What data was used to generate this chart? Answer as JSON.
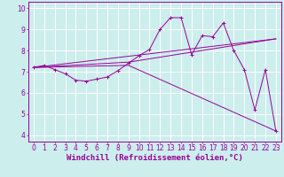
{
  "title": "",
  "xlabel": "Windchill (Refroidissement éolien,°C)",
  "background_color": "#cceeed",
  "line_color": "#990099",
  "grid_color": "#ffffff",
  "xlim": [
    -0.5,
    23.5
  ],
  "ylim": [
    3.7,
    10.3
  ],
  "xticks": [
    0,
    1,
    2,
    3,
    4,
    5,
    6,
    7,
    8,
    9,
    10,
    11,
    12,
    13,
    14,
    15,
    16,
    17,
    18,
    19,
    20,
    21,
    22,
    23
  ],
  "yticks": [
    4,
    5,
    6,
    7,
    8,
    9,
    10
  ],
  "series1_x": [
    0,
    1,
    2,
    3,
    4,
    5,
    6,
    7,
    8,
    9,
    10,
    11,
    12,
    13,
    14,
    15,
    16,
    17,
    18,
    19,
    20,
    21,
    22,
    23
  ],
  "series1_y": [
    7.2,
    7.3,
    7.1,
    6.9,
    6.6,
    6.55,
    6.65,
    6.75,
    7.05,
    7.4,
    7.75,
    8.05,
    9.0,
    9.55,
    9.55,
    7.8,
    8.7,
    8.65,
    9.3,
    8.0,
    7.1,
    5.2,
    7.1,
    4.2
  ],
  "series2_x": [
    0,
    23
  ],
  "series2_y": [
    7.2,
    8.55
  ],
  "series3_x": [
    0,
    9,
    23
  ],
  "series3_y": [
    7.2,
    7.45,
    8.55
  ],
  "series4_x": [
    0,
    9,
    23
  ],
  "series4_y": [
    7.2,
    7.3,
    4.2
  ],
  "fontsize_xlabel": 6.5,
  "fontsize_tick": 5.5
}
